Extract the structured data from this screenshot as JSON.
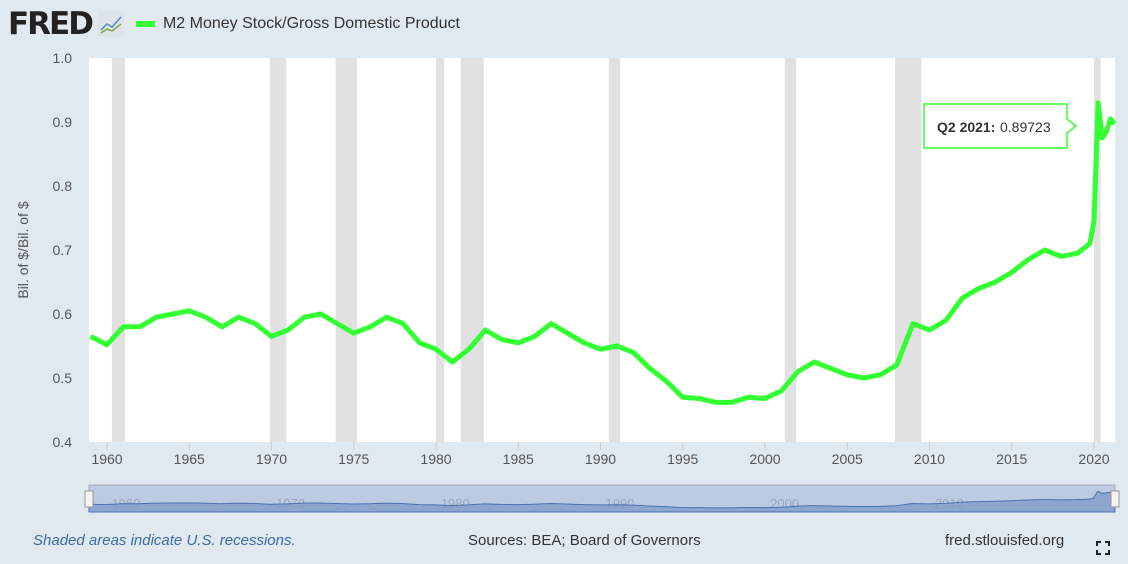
{
  "header": {
    "logo": "FRED",
    "legend_label": "M2 Money Stock/Gross Domestic Product"
  },
  "footer": {
    "recession_note": "Shaded areas indicate U.S. recessions.",
    "sources": "Sources: BEA; Board of Governors",
    "site": "fred.stlouisfed.org"
  },
  "tooltip": {
    "label": "Q2 2021:",
    "value": "0.89723"
  },
  "colors": {
    "series": "#33ff33",
    "recession": "#e1e1e1",
    "navigator": "#7f9ccb"
  },
  "chart_data": {
    "type": "line",
    "title": "M2 Money Stock/Gross Domestic Product",
    "ylabel": "Bil. of $/Bil. of $",
    "xlabel": "",
    "xlim": [
      1959,
      2021.3
    ],
    "ylim": [
      0.4,
      1.0
    ],
    "yticks": [
      "0.4",
      "0.5",
      "0.6",
      "0.7",
      "0.8",
      "0.9",
      "1.0"
    ],
    "xticks": [
      "1960",
      "1965",
      "1970",
      "1975",
      "1980",
      "1985",
      "1990",
      "1995",
      "2000",
      "2005",
      "2010",
      "2015",
      "2020"
    ],
    "navigator_ticks": [
      "1960",
      "1970",
      "1980",
      "1990",
      "2000",
      "2010"
    ],
    "recessions": [
      [
        1960.3,
        1961.1
      ],
      [
        1969.9,
        1970.9
      ],
      [
        1973.9,
        1975.2
      ],
      [
        1980.0,
        1980.5
      ],
      [
        1981.5,
        1982.9
      ],
      [
        1990.5,
        1991.2
      ],
      [
        2001.2,
        2001.9
      ],
      [
        2007.9,
        2009.5
      ],
      [
        2020.0,
        2020.4
      ]
    ],
    "series": [
      {
        "name": "M2 Money Stock/Gross Domestic Product",
        "x": [
          1959,
          1960,
          1961,
          1962,
          1963,
          1964,
          1965,
          1966,
          1967,
          1968,
          1969,
          1970,
          1971,
          1972,
          1973,
          1974,
          1975,
          1976,
          1977,
          1978,
          1979,
          1980,
          1981,
          1982,
          1983,
          1984,
          1985,
          1986,
          1987,
          1988,
          1989,
          1990,
          1991,
          1992,
          1993,
          1994,
          1995,
          1996,
          1997,
          1998,
          1999,
          2000,
          2001,
          2002,
          2003,
          2004,
          2005,
          2006,
          2007,
          2008,
          2009,
          2010,
          2011,
          2012,
          2013,
          2014,
          2015,
          2016,
          2017,
          2018,
          2019,
          2019.75,
          2020.0,
          2020.25,
          2020.5,
          2020.75,
          2021.0,
          2021.25
        ],
        "y": [
          0.565,
          0.552,
          0.58,
          0.58,
          0.595,
          0.6,
          0.605,
          0.595,
          0.58,
          0.595,
          0.585,
          0.565,
          0.575,
          0.595,
          0.6,
          0.585,
          0.57,
          0.58,
          0.595,
          0.585,
          0.555,
          0.545,
          0.525,
          0.545,
          0.575,
          0.56,
          0.555,
          0.565,
          0.585,
          0.57,
          0.555,
          0.545,
          0.55,
          0.54,
          0.515,
          0.495,
          0.47,
          0.468,
          0.462,
          0.462,
          0.47,
          0.468,
          0.48,
          0.51,
          0.525,
          0.515,
          0.505,
          0.5,
          0.505,
          0.52,
          0.585,
          0.575,
          0.59,
          0.625,
          0.64,
          0.65,
          0.665,
          0.685,
          0.7,
          0.69,
          0.695,
          0.71,
          0.745,
          0.93,
          0.875,
          0.885,
          0.905,
          0.897
        ]
      }
    ]
  }
}
